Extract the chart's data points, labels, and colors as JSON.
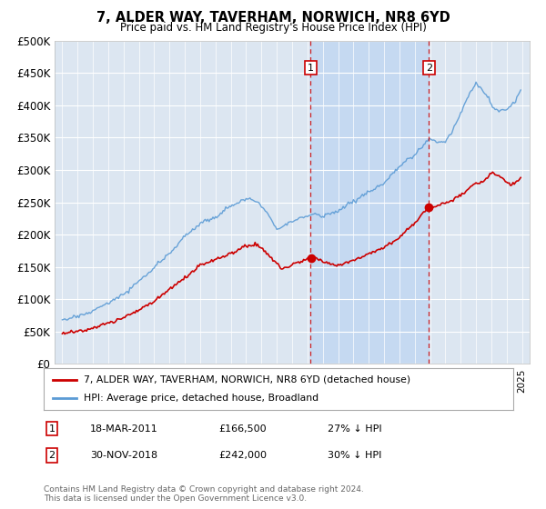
{
  "title": "7, ALDER WAY, TAVERHAM, NORWICH, NR8 6YD",
  "subtitle": "Price paid vs. HM Land Registry's House Price Index (HPI)",
  "bg_color": "#dce6f1",
  "hpi_color": "#5b9bd5",
  "hpi_fill_color": "#dce6f1",
  "price_color": "#cc0000",
  "shade_color": "#c5d9f1",
  "ylim": [
    0,
    500000
  ],
  "xlim_start": 1994.5,
  "xlim_end": 2025.5,
  "ann1_x": 2011.21,
  "ann2_x": 2018.92,
  "ann1_label": "1",
  "ann2_label": "2",
  "annotation1_date": "18-MAR-2011",
  "annotation1_price": "£166,500",
  "annotation1_pct": "27% ↓ HPI",
  "annotation2_date": "30-NOV-2018",
  "annotation2_price": "£242,000",
  "annotation2_pct": "30% ↓ HPI",
  "legend_line1": "7, ALDER WAY, TAVERHAM, NORWICH, NR8 6YD (detached house)",
  "legend_line2": "HPI: Average price, detached house, Broadland",
  "footer": "Contains HM Land Registry data © Crown copyright and database right 2024.\nThis data is licensed under the Open Government Licence v3.0.",
  "ytick_vals": [
    0,
    50000,
    100000,
    150000,
    200000,
    250000,
    300000,
    350000,
    400000,
    450000,
    500000
  ],
  "ytick_labels": [
    "£0",
    "£50K",
    "£100K",
    "£150K",
    "£200K",
    "£250K",
    "£300K",
    "£350K",
    "£400K",
    "£450K",
    "£500K"
  ]
}
